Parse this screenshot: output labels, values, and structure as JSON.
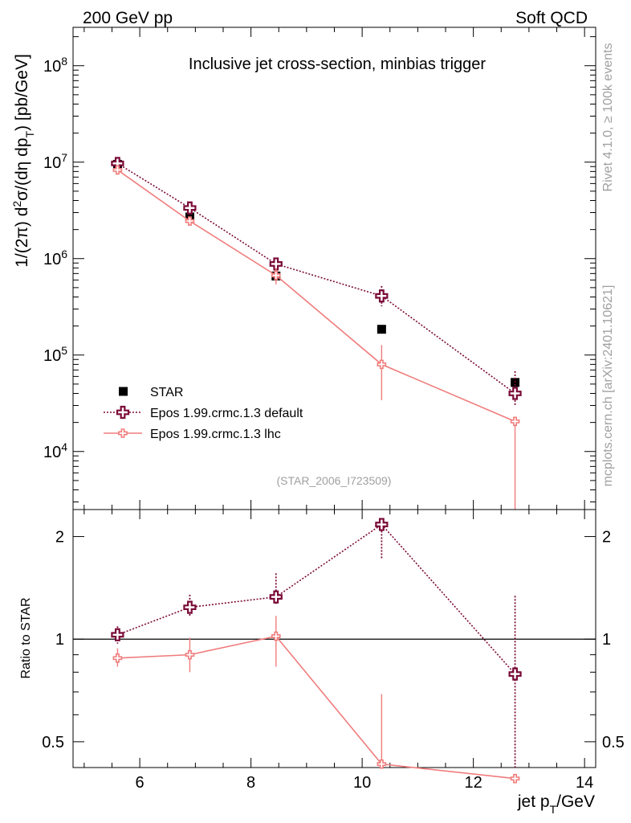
{
  "header": {
    "left": "200 GeV pp",
    "right": "Soft QCD"
  },
  "side_labels": {
    "rivet": "Rivet 4.1.0, ≥ 100k events",
    "mcplots": "mcplots.cern.ch [arXiv:2401.10621]"
  },
  "chart_data": [
    {
      "type": "line",
      "panel": "main",
      "title": "Inclusive jet cross-section, minbias trigger",
      "analysis_tag": "(STAR_2006_I723509)",
      "ylabel_parts": {
        "prefix": "1/(2π)   d",
        "sup2": "2",
        "sigma": "σ/(dη dp",
        "subT": "T",
        "suffix": ") [pb/GeV]"
      },
      "yscale": "log",
      "xlim": [
        4.8,
        14.2
      ],
      "ylim": [
        2500,
        250000000.0
      ],
      "y_ticks": [
        {
          "value": 10000,
          "base": "10",
          "exp": "4"
        },
        {
          "value": 100000,
          "base": "10",
          "exp": "5"
        },
        {
          "value": 1000000,
          "base": "10",
          "exp": "6"
        },
        {
          "value": 10000000,
          "base": "10",
          "exp": "7"
        },
        {
          "value": 100000000,
          "base": "10",
          "exp": "8"
        }
      ],
      "legend_position": "lower-left",
      "series": [
        {
          "name": "STAR",
          "style": "square",
          "color": "#000000",
          "x": [
            5.6,
            6.9,
            8.45,
            10.35,
            12.75
          ],
          "y": [
            9500000,
            2700000,
            660000,
            185000,
            52000
          ],
          "err_low": [
            0,
            0,
            0,
            0,
            0
          ],
          "err_high": [
            0,
            0,
            0,
            0,
            0
          ]
        },
        {
          "name": "Epos 1.99.crmc.1.3 default",
          "style": "cross-dotted",
          "color": "#7a0a37",
          "x": [
            5.6,
            6.9,
            8.45,
            10.35,
            12.75
          ],
          "y": [
            9700000,
            3350000,
            880000,
            410000,
            40000
          ],
          "err_low": [
            800000,
            300000,
            80000,
            90000,
            10000
          ],
          "err_high": [
            800000,
            300000,
            80000,
            110000,
            28000
          ]
        },
        {
          "name": "Epos 1.99.crmc.1.3 lhc",
          "style": "cross-solid",
          "color": "#f07c7c",
          "x": [
            5.6,
            6.9,
            8.45,
            10.35,
            12.75
          ],
          "y": [
            8300000,
            2450000,
            670000,
            80000,
            20500
          ],
          "err_low": [
            600000,
            250000,
            130000,
            46000,
            18000
          ],
          "err_high": [
            600000,
            250000,
            130000,
            47000,
            0
          ]
        }
      ]
    },
    {
      "type": "line",
      "panel": "ratio",
      "ylabel": "Ratio to STAR",
      "xlabel_parts": {
        "prefix": "jet p",
        "sub": "T",
        "suffix": "/GeV"
      },
      "yscale": "log",
      "xlim": [
        4.8,
        14.2
      ],
      "ylim": [
        0.42,
        2.4
      ],
      "x_ticks": [
        "6",
        "8",
        "10",
        "12",
        "14"
      ],
      "x_tick_values": [
        6,
        8,
        10,
        12,
        14
      ],
      "y_ticks": [
        "0.5",
        "1",
        "2"
      ],
      "y_tick_values": [
        0.5,
        1,
        2
      ],
      "reference_line": 1,
      "series": [
        {
          "name": "Epos 1.99.crmc.1.3 default",
          "style": "cross-dotted",
          "color": "#7a0a37",
          "x": [
            5.6,
            6.9,
            8.45,
            10.35,
            12.75
          ],
          "y": [
            1.03,
            1.24,
            1.33,
            2.17,
            0.79
          ],
          "err_low": [
            0.06,
            0.08,
            0.06,
            0.45,
            0.79
          ],
          "err_high": [
            0.06,
            0.11,
            0.23,
            0.0,
            0.55
          ]
        },
        {
          "name": "Epos 1.99.crmc.1.3 lhc",
          "style": "cross-solid",
          "color": "#f07c7c",
          "x": [
            5.6,
            6.9,
            8.45,
            10.35,
            12.75
          ],
          "y": [
            0.88,
            0.9,
            1.02,
            0.43,
            0.39
          ],
          "err_low": [
            0.05,
            0.1,
            0.19,
            0.0,
            0.0
          ],
          "err_high": [
            0.06,
            0.11,
            0.15,
            0.26,
            0.0
          ]
        }
      ]
    }
  ]
}
